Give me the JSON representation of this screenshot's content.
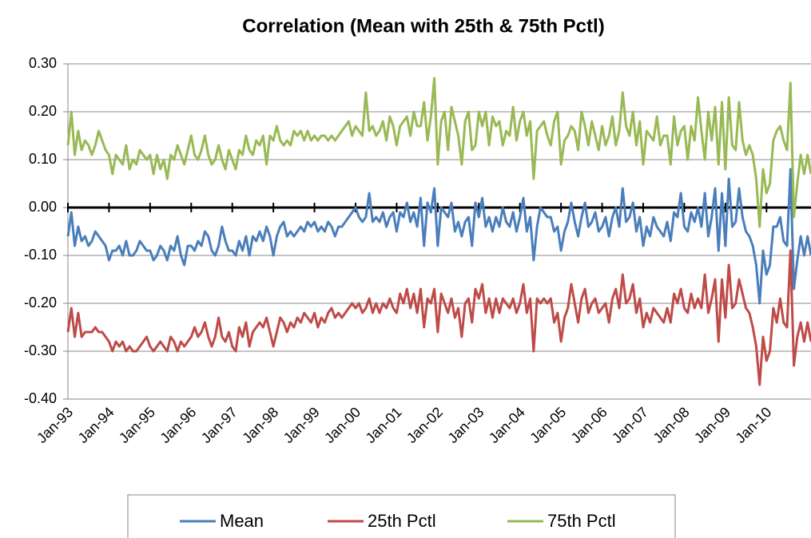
{
  "chart_data": {
    "type": "line",
    "title": "Correlation (Mean with 25th & 75th Pctl)",
    "categories": [
      "Jan-93",
      null,
      null,
      null,
      null,
      null,
      null,
      null,
      null,
      null,
      null,
      null,
      "Jan-94",
      null,
      null,
      null,
      null,
      null,
      null,
      null,
      null,
      null,
      null,
      null,
      "Jan-95",
      null,
      null,
      null,
      null,
      null,
      null,
      null,
      null,
      null,
      null,
      null,
      "Jan-96",
      null,
      null,
      null,
      null,
      null,
      null,
      null,
      null,
      null,
      null,
      null,
      "Jan-97",
      null,
      null,
      null,
      null,
      null,
      null,
      null,
      null,
      null,
      null,
      null,
      "Jan-98",
      null,
      null,
      null,
      null,
      null,
      null,
      null,
      null,
      null,
      null,
      null,
      "Jan-99",
      null,
      null,
      null,
      null,
      null,
      null,
      null,
      null,
      null,
      null,
      null,
      "Jan-00",
      null,
      null,
      null,
      null,
      null,
      null,
      null,
      null,
      null,
      null,
      null,
      "Jan-01",
      null,
      null,
      null,
      null,
      null,
      null,
      null,
      null,
      null,
      null,
      null,
      "Jan-02",
      null,
      null,
      null,
      null,
      null,
      null,
      null,
      null,
      null,
      null,
      null,
      "Jan-03",
      null,
      null,
      null,
      null,
      null,
      null,
      null,
      null,
      null,
      null,
      null,
      "Jan-04",
      null,
      null,
      null,
      null,
      null,
      null,
      null,
      null,
      null,
      null,
      null,
      "Jan-05",
      null,
      null,
      null,
      null,
      null,
      null,
      null,
      null,
      null,
      null,
      null,
      "Jan-06",
      null,
      null,
      null,
      null,
      null,
      null,
      null,
      null,
      null,
      null,
      null,
      "Jan-07",
      null,
      null,
      null,
      null,
      null,
      null,
      null,
      null,
      null,
      null,
      null,
      "Jan-08",
      null,
      null,
      null,
      null,
      null,
      null,
      null,
      null,
      null,
      null,
      null,
      "Jan-09",
      null,
      null,
      null,
      null,
      null,
      null,
      null,
      null,
      null,
      null,
      null,
      "Jan-10",
      null,
      null,
      null,
      null,
      null,
      null,
      null,
      null,
      null,
      null,
      null,
      null,
      null
    ],
    "series": [
      {
        "name": "Mean",
        "color": "#4a7ebb",
        "values": [
          -0.06,
          -0.01,
          -0.08,
          -0.04,
          -0.07,
          -0.06,
          -0.08,
          -0.07,
          -0.05,
          -0.06,
          -0.07,
          -0.08,
          -0.11,
          -0.09,
          -0.09,
          -0.08,
          -0.1,
          -0.07,
          -0.1,
          -0.1,
          -0.09,
          -0.07,
          -0.08,
          -0.09,
          -0.09,
          -0.11,
          -0.1,
          -0.08,
          -0.09,
          -0.11,
          -0.08,
          -0.09,
          -0.06,
          -0.1,
          -0.12,
          -0.08,
          -0.08,
          -0.09,
          -0.07,
          -0.08,
          -0.05,
          -0.06,
          -0.09,
          -0.1,
          -0.08,
          -0.04,
          -0.07,
          -0.09,
          -0.09,
          -0.1,
          -0.07,
          -0.09,
          -0.06,
          -0.1,
          -0.06,
          -0.07,
          -0.05,
          -0.07,
          -0.04,
          -0.06,
          -0.1,
          -0.06,
          -0.04,
          -0.03,
          -0.06,
          -0.05,
          -0.06,
          -0.05,
          -0.04,
          -0.05,
          -0.03,
          -0.04,
          -0.03,
          -0.05,
          -0.04,
          -0.05,
          -0.03,
          -0.04,
          -0.06,
          -0.04,
          -0.04,
          -0.03,
          -0.02,
          -0.01,
          0.0,
          -0.02,
          -0.03,
          -0.02,
          0.03,
          -0.03,
          -0.02,
          -0.03,
          -0.01,
          -0.04,
          -0.02,
          -0.01,
          -0.05,
          -0.01,
          -0.02,
          0.01,
          -0.03,
          -0.01,
          -0.04,
          0.02,
          -0.08,
          0.01,
          -0.01,
          0.04,
          -0.08,
          0.0,
          -0.01,
          -0.02,
          0.01,
          -0.05,
          -0.03,
          -0.06,
          -0.03,
          -0.02,
          -0.08,
          0.01,
          -0.02,
          0.02,
          -0.04,
          -0.02,
          -0.05,
          -0.02,
          -0.04,
          0.0,
          -0.03,
          -0.04,
          -0.01,
          -0.05,
          -0.02,
          0.02,
          -0.05,
          -0.02,
          -0.11,
          -0.04,
          0.0,
          -0.01,
          -0.02,
          -0.02,
          -0.05,
          -0.04,
          -0.09,
          -0.05,
          -0.03,
          0.01,
          -0.03,
          -0.06,
          -0.02,
          0.01,
          -0.04,
          -0.03,
          -0.01,
          -0.05,
          -0.04,
          -0.02,
          -0.06,
          -0.02,
          0.0,
          -0.04,
          0.04,
          -0.03,
          -0.02,
          0.01,
          -0.05,
          -0.02,
          -0.08,
          -0.04,
          -0.06,
          -0.02,
          -0.04,
          -0.05,
          -0.06,
          -0.03,
          -0.07,
          -0.01,
          -0.02,
          0.03,
          -0.04,
          -0.05,
          -0.01,
          -0.03,
          0.0,
          -0.04,
          0.03,
          -0.06,
          -0.02,
          0.04,
          -0.09,
          0.03,
          -0.08,
          0.06,
          -0.04,
          -0.03,
          0.04,
          -0.02,
          -0.05,
          -0.06,
          -0.08,
          -0.12,
          -0.2,
          -0.09,
          -0.14,
          -0.12,
          -0.04,
          -0.04,
          -0.02,
          -0.07,
          -0.08,
          0.08,
          -0.17,
          -0.11,
          -0.06,
          -0.1,
          -0.06,
          -0.1
        ]
      },
      {
        "name": "25th Pctl",
        "color": "#be4b48",
        "values": [
          -0.26,
          -0.21,
          -0.27,
          -0.22,
          -0.27,
          -0.26,
          -0.26,
          -0.26,
          -0.25,
          -0.26,
          -0.26,
          -0.27,
          -0.28,
          -0.3,
          -0.28,
          -0.29,
          -0.28,
          -0.3,
          -0.29,
          -0.3,
          -0.3,
          -0.29,
          -0.28,
          -0.27,
          -0.29,
          -0.3,
          -0.29,
          -0.28,
          -0.29,
          -0.3,
          -0.27,
          -0.28,
          -0.3,
          -0.28,
          -0.29,
          -0.28,
          -0.27,
          -0.25,
          -0.27,
          -0.26,
          -0.24,
          -0.27,
          -0.29,
          -0.27,
          -0.23,
          -0.27,
          -0.28,
          -0.26,
          -0.29,
          -0.3,
          -0.25,
          -0.27,
          -0.24,
          -0.29,
          -0.26,
          -0.25,
          -0.24,
          -0.25,
          -0.23,
          -0.26,
          -0.29,
          -0.26,
          -0.23,
          -0.24,
          -0.26,
          -0.24,
          -0.25,
          -0.23,
          -0.24,
          -0.22,
          -0.23,
          -0.24,
          -0.22,
          -0.25,
          -0.23,
          -0.24,
          -0.22,
          -0.21,
          -0.23,
          -0.22,
          -0.23,
          -0.22,
          -0.21,
          -0.2,
          -0.21,
          -0.2,
          -0.22,
          -0.21,
          -0.19,
          -0.22,
          -0.2,
          -0.22,
          -0.2,
          -0.21,
          -0.19,
          -0.21,
          -0.22,
          -0.18,
          -0.2,
          -0.17,
          -0.21,
          -0.18,
          -0.22,
          -0.17,
          -0.25,
          -0.19,
          -0.2,
          -0.17,
          -0.26,
          -0.18,
          -0.2,
          -0.22,
          -0.19,
          -0.23,
          -0.21,
          -0.27,
          -0.2,
          -0.19,
          -0.24,
          -0.17,
          -0.19,
          -0.16,
          -0.22,
          -0.19,
          -0.23,
          -0.19,
          -0.22,
          -0.19,
          -0.2,
          -0.21,
          -0.19,
          -0.22,
          -0.2,
          -0.16,
          -0.22,
          -0.19,
          -0.3,
          -0.19,
          -0.2,
          -0.19,
          -0.2,
          -0.19,
          -0.24,
          -0.22,
          -0.28,
          -0.23,
          -0.21,
          -0.16,
          -0.2,
          -0.24,
          -0.19,
          -0.17,
          -0.22,
          -0.2,
          -0.19,
          -0.22,
          -0.21,
          -0.2,
          -0.24,
          -0.19,
          -0.17,
          -0.21,
          -0.14,
          -0.2,
          -0.19,
          -0.16,
          -0.22,
          -0.19,
          -0.25,
          -0.22,
          -0.24,
          -0.21,
          -0.22,
          -0.23,
          -0.24,
          -0.21,
          -0.24,
          -0.18,
          -0.2,
          -0.17,
          -0.21,
          -0.22,
          -0.18,
          -0.21,
          -0.19,
          -0.21,
          -0.14,
          -0.22,
          -0.19,
          -0.15,
          -0.28,
          -0.15,
          -0.23,
          -0.12,
          -0.21,
          -0.2,
          -0.15,
          -0.18,
          -0.21,
          -0.22,
          -0.25,
          -0.29,
          -0.37,
          -0.27,
          -0.32,
          -0.3,
          -0.21,
          -0.24,
          -0.19,
          -0.24,
          -0.25,
          -0.09,
          -0.33,
          -0.27,
          -0.24,
          -0.28,
          -0.24,
          -0.28
        ]
      },
      {
        "name": "75th Pctl",
        "color": "#98b954",
        "values": [
          0.13,
          0.2,
          0.11,
          0.16,
          0.12,
          0.14,
          0.13,
          0.11,
          0.13,
          0.16,
          0.14,
          0.12,
          0.11,
          0.07,
          0.11,
          0.1,
          0.09,
          0.13,
          0.08,
          0.1,
          0.09,
          0.12,
          0.11,
          0.1,
          0.11,
          0.07,
          0.11,
          0.08,
          0.1,
          0.06,
          0.11,
          0.1,
          0.13,
          0.11,
          0.09,
          0.12,
          0.15,
          0.11,
          0.1,
          0.12,
          0.15,
          0.11,
          0.09,
          0.1,
          0.13,
          0.1,
          0.08,
          0.12,
          0.1,
          0.08,
          0.12,
          0.11,
          0.15,
          0.12,
          0.11,
          0.14,
          0.13,
          0.15,
          0.09,
          0.15,
          0.14,
          0.17,
          0.14,
          0.13,
          0.14,
          0.13,
          0.16,
          0.15,
          0.16,
          0.14,
          0.16,
          0.14,
          0.15,
          0.14,
          0.15,
          0.15,
          0.14,
          0.15,
          0.14,
          0.15,
          0.16,
          0.17,
          0.18,
          0.15,
          0.17,
          0.16,
          0.15,
          0.24,
          0.16,
          0.17,
          0.15,
          0.16,
          0.18,
          0.14,
          0.19,
          0.17,
          0.13,
          0.17,
          0.18,
          0.19,
          0.15,
          0.2,
          0.17,
          0.17,
          0.22,
          0.14,
          0.19,
          0.27,
          0.09,
          0.18,
          0.2,
          0.12,
          0.21,
          0.18,
          0.15,
          0.09,
          0.18,
          0.2,
          0.12,
          0.13,
          0.2,
          0.17,
          0.2,
          0.13,
          0.19,
          0.17,
          0.18,
          0.13,
          0.16,
          0.15,
          0.21,
          0.14,
          0.18,
          0.2,
          0.15,
          0.18,
          0.06,
          0.16,
          0.17,
          0.18,
          0.15,
          0.13,
          0.18,
          0.2,
          0.09,
          0.14,
          0.15,
          0.17,
          0.16,
          0.12,
          0.2,
          0.17,
          0.13,
          0.18,
          0.15,
          0.12,
          0.17,
          0.13,
          0.15,
          0.19,
          0.13,
          0.16,
          0.24,
          0.17,
          0.15,
          0.2,
          0.13,
          0.18,
          0.09,
          0.16,
          0.15,
          0.14,
          0.19,
          0.13,
          0.15,
          0.15,
          0.09,
          0.19,
          0.13,
          0.16,
          0.17,
          0.1,
          0.17,
          0.14,
          0.23,
          0.16,
          0.1,
          0.2,
          0.14,
          0.21,
          0.09,
          0.22,
          0.08,
          0.23,
          0.13,
          0.12,
          0.22,
          0.14,
          0.11,
          0.13,
          0.11,
          0.06,
          -0.04,
          0.08,
          0.03,
          0.05,
          0.14,
          0.16,
          0.17,
          0.14,
          0.12,
          0.26,
          -0.02,
          0.05,
          0.11,
          0.07,
          0.11,
          0.07
        ]
      }
    ],
    "ylim": [
      -0.4,
      0.3
    ],
    "yticks": [
      {
        "value": -0.4,
        "label": "-0.40"
      },
      {
        "value": -0.3,
        "label": "-0.30"
      },
      {
        "value": -0.2,
        "label": "-0.20"
      },
      {
        "value": -0.1,
        "label": "-0.10"
      },
      {
        "value": 0,
        "label": "0.00"
      },
      {
        "value": 0.1,
        "label": "0.10"
      },
      {
        "value": 0.2,
        "label": "0.20"
      },
      {
        "value": 0.3,
        "label": "0.30"
      }
    ],
    "grid": true,
    "legend": "bottom"
  }
}
